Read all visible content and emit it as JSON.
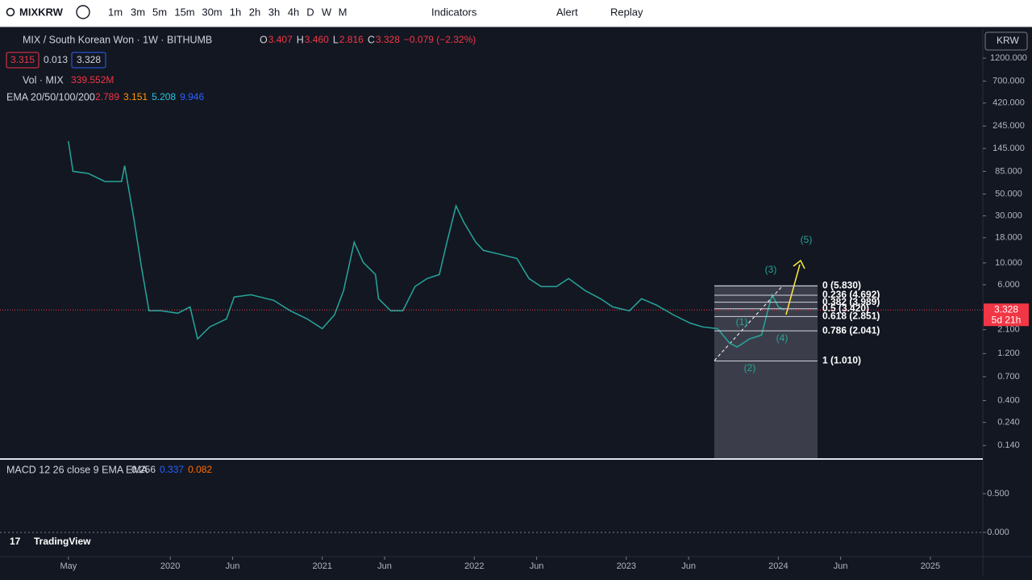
{
  "toolbar": {
    "symbol": "MIXKRW",
    "intervals": [
      "1m",
      "3m",
      "5m",
      "15m",
      "30m",
      "1h",
      "2h",
      "3h",
      "4h",
      "D",
      "W",
      "M"
    ],
    "indicators": "Indicators",
    "alert": "Alert",
    "replay": "Replay"
  },
  "legend": {
    "title": "MIX / South Korean Won · 1W · BITHUMB",
    "ohlc": [
      {
        "key": "O",
        "value": "3.407"
      },
      {
        "key": "H",
        "value": "3.460"
      },
      {
        "key": "L",
        "value": "2.816"
      },
      {
        "key": "C",
        "value": "3.328"
      }
    ],
    "change": "−0.079 (−2.32%)",
    "bid": "3.315",
    "spread": "0.013",
    "ask": "3.328",
    "volume_label": "Vol · MIX",
    "volume": "339.552M",
    "ema_label": "EMA 20/50/100/200",
    "ema_values": [
      "2.789",
      "3.151",
      "5.208",
      "9.946"
    ],
    "currency": "KRW",
    "logo": "TradingView"
  },
  "chart_data": [
    {
      "type": "line",
      "log_scale": true,
      "grid": false,
      "x": [
        2019.33,
        2019.36,
        2019.46,
        2019.57,
        2019.68,
        2019.7,
        2019.76,
        2019.81,
        2019.86,
        2019.94,
        2020.05,
        2020.13,
        2020.18,
        2020.26,
        2020.37,
        2020.42,
        2020.53,
        2020.68,
        2020.79,
        2020.9,
        2021.0,
        2021.08,
        2021.14,
        2021.21,
        2021.27,
        2021.35,
        2021.37,
        2021.45,
        2021.53,
        2021.61,
        2021.69,
        2021.77,
        2021.82,
        2021.88,
        2021.93,
        2022.01,
        2022.06,
        2022.17,
        2022.28,
        2022.36,
        2022.44,
        2022.54,
        2022.62,
        2022.73,
        2022.83,
        2022.91,
        2023.02,
        2023.1,
        2023.2,
        2023.31,
        2023.42,
        2023.5,
        2023.6,
        2023.68,
        2023.73,
        2023.81,
        2023.89,
        2023.93,
        2023.96,
        2024.0,
        2024.04
      ],
      "series": [
        {
          "name": "MIXKRW",
          "color": "#26a69a",
          "values": [
            172,
            85,
            81,
            67,
            67,
            97,
            28.6,
            9.2,
            3.26,
            3.26,
            3.08,
            3.58,
            1.69,
            2.24,
            2.7,
            4.5,
            4.75,
            4.17,
            3.26,
            2.7,
            2.15,
            2.96,
            5.22,
            16.2,
            10.1,
            7.6,
            4.33,
            3.26,
            3.26,
            5.74,
            6.93,
            7.6,
            16.2,
            37.9,
            26,
            16.2,
            13.4,
            12.2,
            11.1,
            6.93,
            5.74,
            5.74,
            6.93,
            5.22,
            4.33,
            3.58,
            3.26,
            4.33,
            3.72,
            2.96,
            2.45,
            2.24,
            2.15,
            1.53,
            1.4,
            1.69,
            1.85,
            3.26,
            4.75,
            3.58,
            3.328
          ]
        }
      ],
      "last_price": {
        "value": 3.328,
        "label": "3.328",
        "countdown": "5d 21h",
        "color": "#f23645"
      },
      "xlim": [
        2018.88,
        2025.34
      ],
      "xticks": [
        {
          "value": 2019.33,
          "label": "May"
        },
        {
          "value": 2020,
          "label": "2020"
        },
        {
          "value": 2020.41,
          "label": "Jun"
        },
        {
          "value": 2021,
          "label": "2021"
        },
        {
          "value": 2021.41,
          "label": "Jun"
        },
        {
          "value": 2022,
          "label": "2022"
        },
        {
          "value": 2022.41,
          "label": "Jun"
        },
        {
          "value": 2023,
          "label": "2023"
        },
        {
          "value": 2023.41,
          "label": "Jun"
        },
        {
          "value": 2024,
          "label": "2024"
        },
        {
          "value": 2024.41,
          "label": "Jun"
        },
        {
          "value": 2025,
          "label": "2025"
        }
      ],
      "ylim": [
        0.104,
        2280
      ],
      "yticks": [
        {
          "value": 1200,
          "label": "1200.000"
        },
        {
          "value": 700,
          "label": "700.000"
        },
        {
          "value": 420,
          "label": "420.000"
        },
        {
          "value": 245,
          "label": "245.000"
        },
        {
          "value": 145,
          "label": "145.000"
        },
        {
          "value": 85,
          "label": "85.000"
        },
        {
          "value": 50,
          "label": "50.000"
        },
        {
          "value": 30,
          "label": "30.000"
        },
        {
          "value": 18,
          "label": "18.000"
        },
        {
          "value": 10,
          "label": "10.000"
        },
        {
          "value": 6,
          "label": "6.000"
        },
        {
          "value": 2.1,
          "label": "2.100"
        },
        {
          "value": 1.2,
          "label": "1.200"
        },
        {
          "value": 0.7,
          "label": "0.700"
        },
        {
          "value": 0.4,
          "label": "0.400"
        },
        {
          "value": 0.24,
          "label": "0.240"
        },
        {
          "value": 0.14,
          "label": "0.140"
        }
      ],
      "fib_levels": {
        "values": [
          5.83,
          4.692,
          3.989,
          3.42,
          2.851,
          2.041,
          1.01
        ],
        "value_labels": [
          "0 (5.830)",
          "0.236 (4.692)",
          "0.382 (3.989)",
          "0.5 (3.420)",
          "0.618 (2.851)",
          "0.786 (2.041)",
          "1 (1.010)"
        ]
      },
      "waves": [
        "(1)",
        "(2)",
        "(3)",
        "(4)",
        "(5)"
      ]
    },
    {
      "type": "histogram",
      "title": "MACD 12 26 close 9 EMA EMA",
      "values_text": [
        "0.256",
        "0.337",
        "0.082"
      ],
      "ylim": [
        -0.3125,
        0.9375
      ],
      "yticks": [
        {
          "value": 0.5,
          "label": "0.500"
        },
        {
          "value": 0,
          "label": "0.000"
        }
      ]
    }
  ]
}
